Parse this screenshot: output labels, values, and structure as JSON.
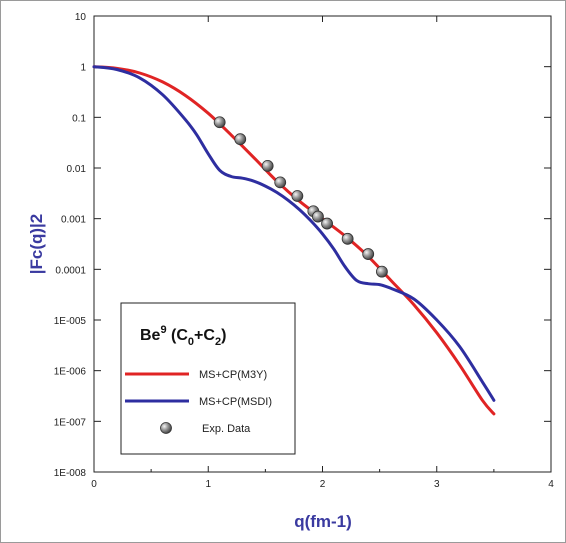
{
  "chart_data": {
    "type": "line",
    "xlabel": "q(fm-1)",
    "ylabel": "|Fc(q)|2",
    "xlim": [
      0,
      4
    ],
    "ylim": [
      1e-08,
      10
    ],
    "yscale": "log",
    "x_ticks": [
      0,
      1,
      2,
      3,
      4
    ],
    "y_ticks": [
      10,
      1,
      0.1,
      0.01,
      0.001,
      0.0001,
      1e-05,
      1e-06,
      1e-07,
      1e-08
    ],
    "y_tick_labels": [
      "10",
      "1",
      "0.1",
      "0.01",
      "0.001",
      "0.0001",
      "1E-005",
      "1E-006",
      "1E-007",
      "1E-008"
    ],
    "grid": false,
    "legend_position": "bottom-left",
    "legend_title": {
      "main": "Be",
      "sup": "9",
      "paren_open": " (C",
      "sub1": "0",
      "plus": "+C",
      "sub2": "2",
      "paren_close": ")"
    },
    "series": [
      {
        "name": "MS+CP(M3Y)",
        "color": "#e02424",
        "style": "line",
        "x": [
          0,
          0.2,
          0.4,
          0.6,
          0.8,
          1.0,
          1.2,
          1.4,
          1.6,
          1.8,
          2.0,
          2.2,
          2.4,
          2.6,
          2.8,
          3.0,
          3.2,
          3.4,
          3.5
        ],
        "y": [
          1.0,
          0.93,
          0.75,
          0.5,
          0.27,
          0.12,
          0.045,
          0.016,
          0.0055,
          0.0022,
          0.001,
          0.00045,
          0.00018,
          6e-05,
          2e-05,
          5.6e-06,
          1.3e-06,
          2.6e-07,
          1.4e-07
        ]
      },
      {
        "name": "MS+CP(MSDI)",
        "color": "#2e2ea0",
        "style": "line",
        "x": [
          0,
          0.2,
          0.4,
          0.6,
          0.8,
          0.9,
          1.0,
          1.1,
          1.2,
          1.3,
          1.4,
          1.5,
          1.6,
          1.7,
          1.8,
          1.9,
          2.0,
          2.1,
          2.2,
          2.3,
          2.4,
          2.5,
          2.6,
          2.8,
          3.0,
          3.2,
          3.4,
          3.5
        ],
        "y": [
          1.0,
          0.88,
          0.6,
          0.28,
          0.09,
          0.045,
          0.019,
          0.009,
          0.0068,
          0.0063,
          0.0055,
          0.0044,
          0.0033,
          0.0023,
          0.0015,
          0.0009,
          0.0005,
          0.00025,
          0.00011,
          6e-05,
          5.2e-05,
          5e-05,
          4.2e-05,
          2.6e-05,
          1e-05,
          3e-06,
          6e-07,
          2.6e-07
        ]
      },
      {
        "name": "Exp. Data",
        "color": "#7a7a7a",
        "style": "scatter",
        "x": [
          1.1,
          1.28,
          1.52,
          1.63,
          1.78,
          1.92,
          1.96,
          2.04,
          2.22,
          2.4,
          2.52
        ],
        "y": [
          0.08,
          0.037,
          0.011,
          0.0052,
          0.0028,
          0.0014,
          0.0011,
          0.0008,
          0.0004,
          0.0002,
          9e-05
        ]
      }
    ]
  }
}
